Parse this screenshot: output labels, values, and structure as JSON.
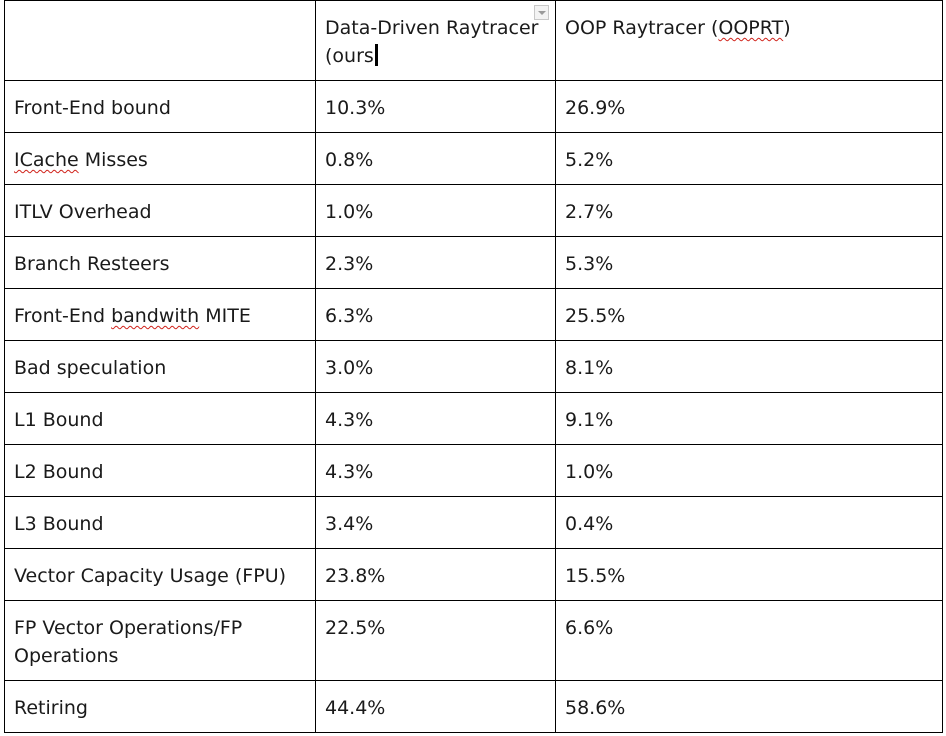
{
  "table": {
    "header": {
      "col0": "",
      "col1_line1": "Data-Driven Raytracer",
      "col1_line2": "(ours",
      "col2_prefix": "OOP Raytracer (",
      "col2_flagged": "OOPRT",
      "col2_suffix": ")"
    },
    "rows": [
      {
        "label": "Front-End bound",
        "ours": "10.3%",
        "ooprt": "26.9%"
      },
      {
        "label_flagged": "ICache",
        "label_rest": " Misses",
        "ours": "0.8%",
        "ooprt": "5.2%"
      },
      {
        "label": "ITLV Overhead",
        "ours": "1.0%",
        "ooprt": "2.7%"
      },
      {
        "label": "Branch Resteers",
        "ours": "2.3%",
        "ooprt": "5.3%"
      },
      {
        "label_pre": "Front-End ",
        "label_flagged": "bandwith",
        "label_rest": " MITE",
        "ours": "6.3%",
        "ooprt": "25.5%"
      },
      {
        "label": "Bad speculation",
        "ours": "3.0%",
        "ooprt": "8.1%"
      },
      {
        "label": "L1 Bound",
        "ours": "4.3%",
        "ooprt": "9.1%"
      },
      {
        "label": "L2 Bound",
        "ours": "4.3%",
        "ooprt": "1.0%"
      },
      {
        "label": "L3 Bound",
        "ours": "3.4%",
        "ooprt": "0.4%"
      },
      {
        "label": "Vector Capacity Usage (FPU)",
        "ours": "23.8%",
        "ooprt": "15.5%"
      },
      {
        "label_line1": "FP Vector Operations/FP",
        "label_line2": "Operations",
        "ours": "22.5%",
        "ooprt": "6.6%"
      },
      {
        "label": "Retiring",
        "ours": "44.4%",
        "ooprt": "58.6%"
      }
    ]
  },
  "icons": {
    "dropdown": "dropdown-arrow-icon",
    "caret": "text-cursor"
  },
  "colors": {
    "border": "#000000",
    "spellcheck": "#d0221a"
  }
}
